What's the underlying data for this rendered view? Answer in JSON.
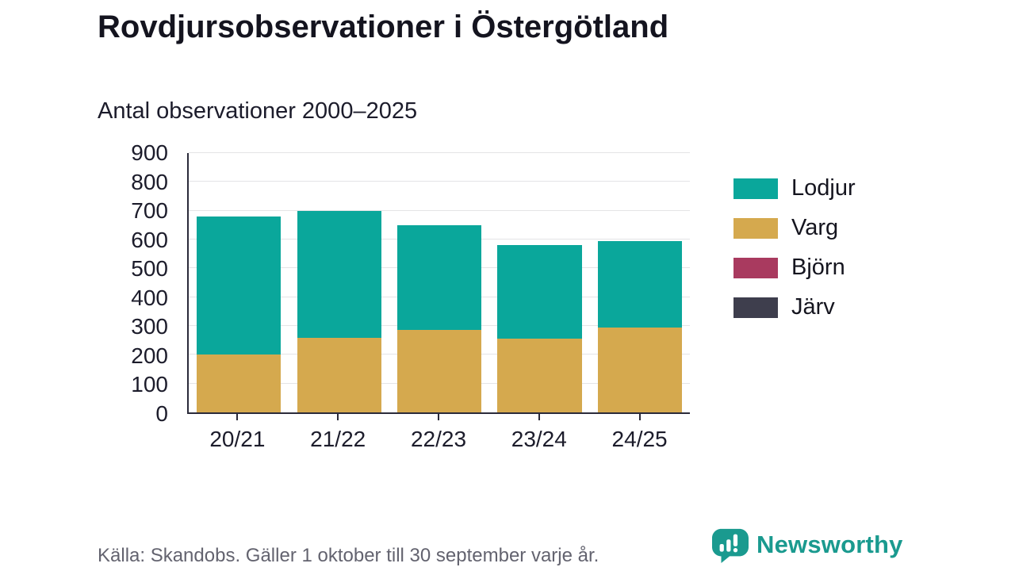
{
  "header": {
    "title": "Rovdjursobservationer i Östergötland",
    "subtitle": "Antal observationer 2000–2025"
  },
  "footer": {
    "source": "Källa: Skandobs. Gäller 1 oktober till 30 september varje år.",
    "brand": "Newsworthy"
  },
  "colors": {
    "teal": "#0aa79b",
    "gold": "#d5a94e",
    "maroon": "#a93a5f",
    "slate": "#3e3e4d",
    "brand_teal": "#1a9a8f",
    "axis": "#2b2b3a",
    "gridline": "#e4e4e6"
  },
  "icons": {
    "brand_logo": "newsworthy-speech-bubble-barchart-icon"
  },
  "chart_data": {
    "type": "bar",
    "stacked": true,
    "title": "Rovdjursobservationer i Östergötland",
    "subtitle": "Antal observationer 2000–2025",
    "categories": [
      "20/21",
      "21/22",
      "22/23",
      "23/24",
      "24/25"
    ],
    "series": [
      {
        "name": "Varg",
        "color": "#d5a94e",
        "values": [
          200,
          260,
          285,
          255,
          295
        ]
      },
      {
        "name": "Lodjur",
        "color": "#0aa79b",
        "values": [
          480,
          440,
          365,
          325,
          300
        ]
      },
      {
        "name": "Björn",
        "color": "#a93a5f",
        "values": [
          0,
          0,
          0,
          0,
          0
        ]
      },
      {
        "name": "Järv",
        "color": "#3e3e4d",
        "values": [
          0,
          0,
          0,
          0,
          0
        ]
      }
    ],
    "totals": [
      680,
      700,
      650,
      580,
      595
    ],
    "legend_order": [
      "Lodjur",
      "Varg",
      "Björn",
      "Järv"
    ],
    "legend_position": "right",
    "xlabel": "",
    "ylabel": "",
    "ylim": [
      0,
      900
    ],
    "yticks": [
      0,
      100,
      200,
      300,
      400,
      500,
      600,
      700,
      800,
      900
    ],
    "grid": true
  }
}
